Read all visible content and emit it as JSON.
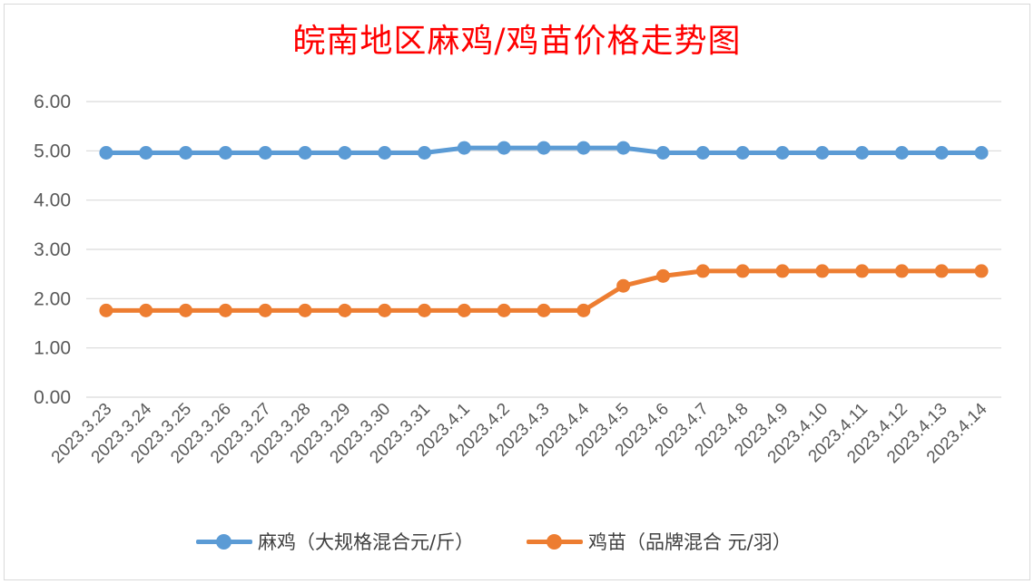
{
  "chart_data": {
    "type": "line",
    "title": "皖南地区麻鸡/鸡苗价格走势图",
    "xlabel": "",
    "ylabel": "",
    "categories": [
      "2023.3.23",
      "2023.3.24",
      "2023.3.25",
      "2023.3.26",
      "2023.3.27",
      "2023.3.28",
      "2023.3.29",
      "2023.3.30",
      "2023.3.31",
      "2023.4.1",
      "2023.4.2",
      "2023.4.3",
      "2023.4.4",
      "2023.4.5",
      "2023.4.6",
      "2023.4.7",
      "2023.4.8",
      "2023.4.9",
      "2023.4.10",
      "2023.4.11",
      "2023.4.12",
      "2023.4.13",
      "2023.4.14"
    ],
    "y_ticks": [
      "0.00",
      "1.00",
      "2.00",
      "3.00",
      "4.00",
      "5.00",
      "6.00"
    ],
    "ylim": [
      0,
      6
    ],
    "grid": true,
    "legend_position": "bottom",
    "series": [
      {
        "name": "麻鸡（大规格混合元/斤）",
        "color": "#5b9bd5",
        "values": [
          4.96,
          4.96,
          4.96,
          4.96,
          4.96,
          4.96,
          4.96,
          4.96,
          4.96,
          5.06,
          5.06,
          5.06,
          5.06,
          5.06,
          4.96,
          4.96,
          4.96,
          4.96,
          4.96,
          4.96,
          4.96,
          4.96,
          4.96
        ]
      },
      {
        "name": "鸡苗（品牌混合 元/羽）",
        "color": "#ed7d31",
        "values": [
          1.76,
          1.76,
          1.76,
          1.76,
          1.76,
          1.76,
          1.76,
          1.76,
          1.76,
          1.76,
          1.76,
          1.76,
          1.76,
          2.26,
          2.46,
          2.56,
          2.56,
          2.56,
          2.56,
          2.56,
          2.56,
          2.56,
          2.56
        ]
      }
    ]
  }
}
